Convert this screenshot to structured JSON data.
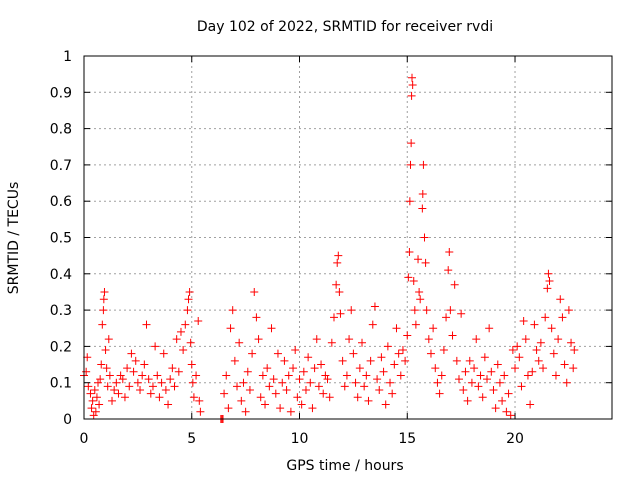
{
  "chart_data": {
    "type": "scatter",
    "title": "Day 102 of 2022, SRMTID for receiver rvdi",
    "xlabel": "GPS time / hours",
    "ylabel": "SRMTID / TECUs",
    "xlim": [
      0,
      24.5
    ],
    "ylim": [
      0,
      1
    ],
    "xticks": [
      0,
      5,
      10,
      15,
      20
    ],
    "xtick_labels": [
      "0",
      "5",
      "10",
      "15",
      "20"
    ],
    "yticks": [
      0,
      0.1,
      0.2,
      0.3,
      0.4,
      0.5,
      0.6,
      0.7,
      0.8,
      0.9,
      1
    ],
    "ytick_labels": [
      "0",
      "0.1",
      "0.2",
      "0.3",
      "0.4",
      "0.5",
      "0.6",
      "0.7",
      "0.8",
      "0.9",
      "1"
    ],
    "grid": true,
    "marker": "+",
    "color": "#ff0000",
    "series": [
      {
        "name": "SRMTID",
        "points": [
          [
            0.0,
            0.12
          ],
          [
            0.1,
            0.13
          ],
          [
            0.15,
            0.17
          ],
          [
            0.2,
            0.09
          ],
          [
            0.3,
            0.07
          ],
          [
            0.35,
            0.03
          ],
          [
            0.4,
            0.05
          ],
          [
            0.45,
            0.01
          ],
          [
            0.5,
            0.08
          ],
          [
            0.55,
            0.02
          ],
          [
            0.6,
            0.06
          ],
          [
            0.65,
            0.1
          ],
          [
            0.7,
            0.04
          ],
          [
            0.75,
            0.11
          ],
          [
            0.8,
            0.15
          ],
          [
            0.85,
            0.26
          ],
          [
            0.9,
            0.3
          ],
          [
            0.92,
            0.33
          ],
          [
            0.95,
            0.35
          ],
          [
            1.0,
            0.19
          ],
          [
            1.05,
            0.14
          ],
          [
            1.1,
            0.09
          ],
          [
            1.15,
            0.22
          ],
          [
            1.2,
            0.12
          ],
          [
            1.3,
            0.05
          ],
          [
            1.4,
            0.08
          ],
          [
            1.5,
            0.1
          ],
          [
            1.6,
            0.07
          ],
          [
            1.7,
            0.12
          ],
          [
            1.8,
            0.11
          ],
          [
            1.9,
            0.06
          ],
          [
            2.0,
            0.14
          ],
          [
            2.1,
            0.09
          ],
          [
            2.2,
            0.18
          ],
          [
            2.3,
            0.13
          ],
          [
            2.4,
            0.16
          ],
          [
            2.5,
            0.1
          ],
          [
            2.6,
            0.08
          ],
          [
            2.7,
            0.12
          ],
          [
            2.8,
            0.15
          ],
          [
            2.9,
            0.26
          ],
          [
            3.0,
            0.11
          ],
          [
            3.1,
            0.07
          ],
          [
            3.2,
            0.09
          ],
          [
            3.3,
            0.2
          ],
          [
            3.4,
            0.12
          ],
          [
            3.5,
            0.06
          ],
          [
            3.6,
            0.1
          ],
          [
            3.7,
            0.18
          ],
          [
            3.8,
            0.08
          ],
          [
            3.9,
            0.04
          ],
          [
            4.0,
            0.11
          ],
          [
            4.1,
            0.14
          ],
          [
            4.2,
            0.09
          ],
          [
            4.3,
            0.22
          ],
          [
            4.4,
            0.13
          ],
          [
            4.5,
            0.24
          ],
          [
            4.6,
            0.19
          ],
          [
            4.7,
            0.26
          ],
          [
            4.8,
            0.3
          ],
          [
            4.85,
            0.33
          ],
          [
            4.9,
            0.35
          ],
          [
            4.95,
            0.21
          ],
          [
            5.0,
            0.15
          ],
          [
            5.05,
            0.1
          ],
          [
            5.1,
            0.06
          ],
          [
            5.2,
            0.12
          ],
          [
            5.3,
            0.27
          ],
          [
            5.35,
            0.05
          ],
          [
            5.4,
            0.02
          ],
          [
            6.35,
            0.0
          ],
          [
            6.4,
            0.0
          ],
          [
            6.45,
            0.0
          ],
          [
            6.5,
            0.07
          ],
          [
            6.6,
            0.12
          ],
          [
            6.7,
            0.03
          ],
          [
            6.8,
            0.25
          ],
          [
            6.9,
            0.3
          ],
          [
            7.0,
            0.16
          ],
          [
            7.1,
            0.09
          ],
          [
            7.2,
            0.21
          ],
          [
            7.3,
            0.05
          ],
          [
            7.4,
            0.1
          ],
          [
            7.5,
            0.02
          ],
          [
            7.6,
            0.13
          ],
          [
            7.7,
            0.08
          ],
          [
            7.8,
            0.18
          ],
          [
            7.9,
            0.35
          ],
          [
            8.0,
            0.28
          ],
          [
            8.1,
            0.22
          ],
          [
            8.2,
            0.06
          ],
          [
            8.3,
            0.12
          ],
          [
            8.4,
            0.04
          ],
          [
            8.5,
            0.14
          ],
          [
            8.6,
            0.09
          ],
          [
            8.7,
            0.25
          ],
          [
            8.8,
            0.11
          ],
          [
            8.9,
            0.07
          ],
          [
            9.0,
            0.18
          ],
          [
            9.1,
            0.03
          ],
          [
            9.2,
            0.1
          ],
          [
            9.3,
            0.16
          ],
          [
            9.4,
            0.08
          ],
          [
            9.5,
            0.12
          ],
          [
            9.6,
            0.02
          ],
          [
            9.7,
            0.14
          ],
          [
            9.8,
            0.19
          ],
          [
            9.9,
            0.06
          ],
          [
            10.0,
            0.11
          ],
          [
            10.1,
            0.04
          ],
          [
            10.2,
            0.13
          ],
          [
            10.3,
            0.08
          ],
          [
            10.4,
            0.17
          ],
          [
            10.5,
            0.1
          ],
          [
            10.6,
            0.03
          ],
          [
            10.7,
            0.14
          ],
          [
            10.8,
            0.22
          ],
          [
            10.9,
            0.09
          ],
          [
            11.0,
            0.15
          ],
          [
            11.1,
            0.07
          ],
          [
            11.2,
            0.12
          ],
          [
            11.3,
            0.11
          ],
          [
            11.4,
            0.06
          ],
          [
            11.5,
            0.21
          ],
          [
            11.6,
            0.28
          ],
          [
            11.7,
            0.37
          ],
          [
            11.75,
            0.43
          ],
          [
            11.8,
            0.45
          ],
          [
            11.85,
            0.35
          ],
          [
            11.9,
            0.29
          ],
          [
            12.0,
            0.16
          ],
          [
            12.1,
            0.09
          ],
          [
            12.2,
            0.12
          ],
          [
            12.3,
            0.22
          ],
          [
            12.4,
            0.3
          ],
          [
            12.5,
            0.18
          ],
          [
            12.6,
            0.1
          ],
          [
            12.7,
            0.06
          ],
          [
            12.8,
            0.14
          ],
          [
            12.9,
            0.21
          ],
          [
            13.0,
            0.09
          ],
          [
            13.1,
            0.12
          ],
          [
            13.2,
            0.05
          ],
          [
            13.3,
            0.16
          ],
          [
            13.4,
            0.26
          ],
          [
            13.5,
            0.31
          ],
          [
            13.6,
            0.11
          ],
          [
            13.7,
            0.08
          ],
          [
            13.8,
            0.17
          ],
          [
            13.9,
            0.13
          ],
          [
            14.0,
            0.04
          ],
          [
            14.1,
            0.2
          ],
          [
            14.2,
            0.1
          ],
          [
            14.3,
            0.07
          ],
          [
            14.4,
            0.15
          ],
          [
            14.5,
            0.25
          ],
          [
            14.6,
            0.18
          ],
          [
            14.7,
            0.12
          ],
          [
            14.8,
            0.19
          ],
          [
            14.9,
            0.16
          ],
          [
            15.0,
            0.23
          ],
          [
            15.05,
            0.39
          ],
          [
            15.1,
            0.46
          ],
          [
            15.12,
            0.6
          ],
          [
            15.15,
            0.7
          ],
          [
            15.18,
            0.76
          ],
          [
            15.2,
            0.89
          ],
          [
            15.22,
            0.94
          ],
          [
            15.25,
            0.92
          ],
          [
            15.3,
            0.38
          ],
          [
            15.35,
            0.3
          ],
          [
            15.4,
            0.26
          ],
          [
            15.5,
            0.44
          ],
          [
            15.55,
            0.35
          ],
          [
            15.6,
            0.33
          ],
          [
            15.7,
            0.58
          ],
          [
            15.72,
            0.62
          ],
          [
            15.75,
            0.7
          ],
          [
            15.8,
            0.5
          ],
          [
            15.85,
            0.43
          ],
          [
            15.9,
            0.3
          ],
          [
            16.0,
            0.22
          ],
          [
            16.1,
            0.18
          ],
          [
            16.2,
            0.25
          ],
          [
            16.3,
            0.14
          ],
          [
            16.4,
            0.1
          ],
          [
            16.5,
            0.07
          ],
          [
            16.6,
            0.12
          ],
          [
            16.7,
            0.19
          ],
          [
            16.8,
            0.28
          ],
          [
            16.9,
            0.41
          ],
          [
            16.95,
            0.46
          ],
          [
            17.0,
            0.3
          ],
          [
            17.1,
            0.23
          ],
          [
            17.2,
            0.37
          ],
          [
            17.3,
            0.16
          ],
          [
            17.4,
            0.11
          ],
          [
            17.5,
            0.29
          ],
          [
            17.6,
            0.08
          ],
          [
            17.7,
            0.13
          ],
          [
            17.8,
            0.05
          ],
          [
            17.9,
            0.16
          ],
          [
            18.0,
            0.1
          ],
          [
            18.1,
            0.14
          ],
          [
            18.2,
            0.22
          ],
          [
            18.3,
            0.09
          ],
          [
            18.4,
            0.12
          ],
          [
            18.5,
            0.06
          ],
          [
            18.6,
            0.17
          ],
          [
            18.7,
            0.11
          ],
          [
            18.8,
            0.25
          ],
          [
            18.9,
            0.13
          ],
          [
            19.0,
            0.08
          ],
          [
            19.1,
            0.03
          ],
          [
            19.2,
            0.15
          ],
          [
            19.3,
            0.1
          ],
          [
            19.4,
            0.05
          ],
          [
            19.5,
            0.12
          ],
          [
            19.6,
            0.02
          ],
          [
            19.7,
            0.07
          ],
          [
            19.8,
            0.01
          ],
          [
            19.9,
            0.19
          ],
          [
            20.0,
            0.14
          ],
          [
            20.1,
            0.2
          ],
          [
            20.2,
            0.17
          ],
          [
            20.3,
            0.09
          ],
          [
            20.4,
            0.27
          ],
          [
            20.5,
            0.22
          ],
          [
            20.6,
            0.12
          ],
          [
            20.7,
            0.04
          ],
          [
            20.8,
            0.13
          ],
          [
            20.9,
            0.26
          ],
          [
            21.0,
            0.19
          ],
          [
            21.1,
            0.16
          ],
          [
            21.2,
            0.21
          ],
          [
            21.3,
            0.14
          ],
          [
            21.4,
            0.28
          ],
          [
            21.5,
            0.36
          ],
          [
            21.55,
            0.4
          ],
          [
            21.6,
            0.38
          ],
          [
            21.7,
            0.25
          ],
          [
            21.8,
            0.18
          ],
          [
            21.9,
            0.12
          ],
          [
            22.0,
            0.22
          ],
          [
            22.1,
            0.33
          ],
          [
            22.2,
            0.28
          ],
          [
            22.3,
            0.15
          ],
          [
            22.4,
            0.1
          ],
          [
            22.5,
            0.3
          ],
          [
            22.6,
            0.21
          ],
          [
            22.7,
            0.14
          ],
          [
            22.75,
            0.19
          ]
        ]
      }
    ]
  }
}
